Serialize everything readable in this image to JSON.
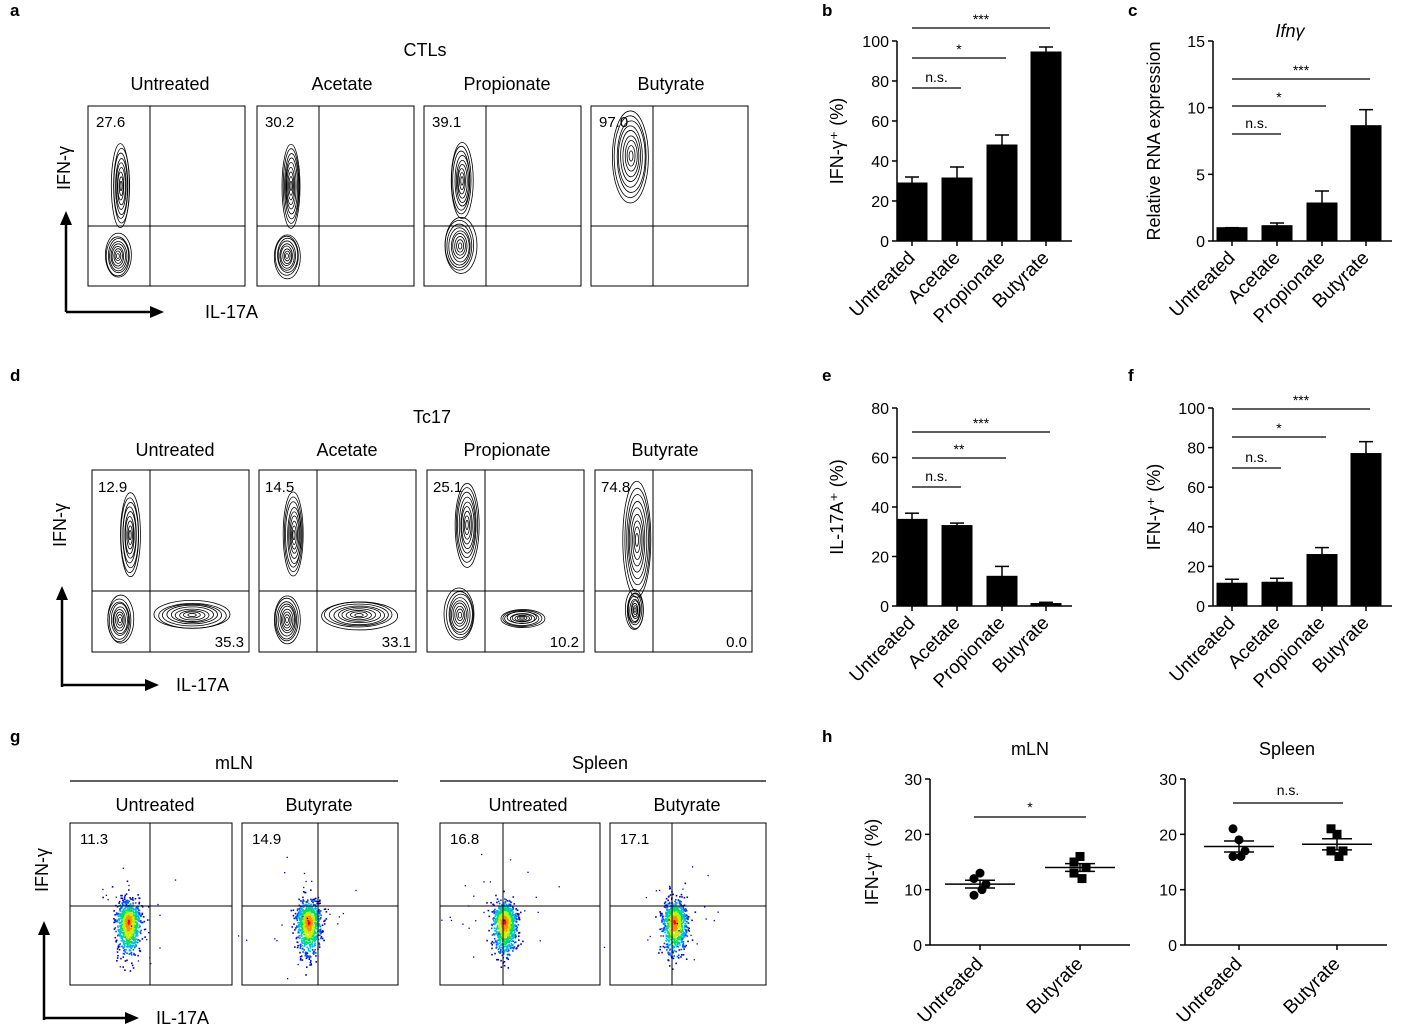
{
  "panel_letters": [
    "a",
    "b",
    "c",
    "d",
    "e",
    "f",
    "g",
    "h"
  ],
  "flow": {
    "x_axis_label": "IL-17A",
    "y_axis_label": "IFN-γ",
    "a": {
      "title": "CTLs",
      "columns": [
        "Untreated",
        "Acetate",
        "Propionate",
        "Butyrate"
      ],
      "upper_left": [
        "27.6",
        "30.2",
        "39.1",
        "97.0"
      ]
    },
    "d": {
      "title": "Tc17",
      "columns": [
        "Untreated",
        "Acetate",
        "Propionate",
        "Butyrate"
      ],
      "upper_left": [
        "12.9",
        "14.5",
        "25.1",
        "74.8"
      ],
      "lower_right": [
        "35.3",
        "33.1",
        "10.2",
        "0.0"
      ]
    },
    "g": {
      "groups": [
        "mLN",
        "Spleen"
      ],
      "columns": [
        "Untreated",
        "Butyrate",
        "Untreated",
        "Butyrate"
      ],
      "upper_left": [
        "11.3",
        "14.9",
        "16.8",
        "17.1"
      ]
    }
  },
  "chart_data": [
    {
      "id": "b",
      "type": "bar",
      "title": "",
      "categories": [
        "Untreated",
        "Acetate",
        "Propionate",
        "Butyrate"
      ],
      "values": [
        29,
        31.5,
        48,
        94.5
      ],
      "errors": [
        3,
        5.5,
        5,
        2.5
      ],
      "ylabel": "IFN-γ⁺ (%)",
      "ylim": [
        0,
        100
      ],
      "yticks": [
        0,
        20,
        40,
        60,
        80,
        100
      ],
      "bar_color": "#000000",
      "significance": [
        {
          "from": "Untreated",
          "to": "Acetate",
          "label": "n.s."
        },
        {
          "from": "Untreated",
          "to": "Propionate",
          "label": "*"
        },
        {
          "from": "Untreated",
          "to": "Butyrate",
          "label": "***"
        }
      ]
    },
    {
      "id": "c",
      "type": "bar",
      "title": "Ifnγ",
      "categories": [
        "Untreated",
        "Acetate",
        "Propionate",
        "Butyrate"
      ],
      "values": [
        1,
        1.15,
        2.85,
        8.65
      ],
      "errors": [
        0,
        0.2,
        0.9,
        1.2
      ],
      "ylabel": "Relative RNA expression",
      "ylim": [
        0,
        15
      ],
      "yticks": [
        0,
        5,
        10,
        15
      ],
      "bar_color": "#000000",
      "significance": [
        {
          "from": "Untreated",
          "to": "Acetate",
          "label": "n.s."
        },
        {
          "from": "Untreated",
          "to": "Propionate",
          "label": "*"
        },
        {
          "from": "Untreated",
          "to": "Butyrate",
          "label": "***"
        }
      ]
    },
    {
      "id": "e",
      "type": "bar",
      "title": "",
      "categories": [
        "Untreated",
        "Acetate",
        "Propionate",
        "Butyrate"
      ],
      "values": [
        35,
        32.5,
        12,
        1
      ],
      "errors": [
        2.5,
        1,
        4,
        0.5
      ],
      "ylabel": "IL-17A⁺ (%)",
      "ylim": [
        0,
        80
      ],
      "yticks": [
        0,
        20,
        40,
        60,
        80
      ],
      "bar_color": "#000000",
      "significance": [
        {
          "from": "Untreated",
          "to": "Acetate",
          "label": "n.s."
        },
        {
          "from": "Untreated",
          "to": "Propionate",
          "label": "**"
        },
        {
          "from": "Untreated",
          "to": "Butyrate",
          "label": "***"
        }
      ]
    },
    {
      "id": "f",
      "type": "bar",
      "title": "",
      "categories": [
        "Untreated",
        "Acetate",
        "Propionate",
        "Butyrate"
      ],
      "values": [
        11.5,
        12,
        26,
        77
      ],
      "errors": [
        2,
        2,
        3.5,
        6
      ],
      "ylabel": "IFN-γ⁺ (%)",
      "ylim": [
        0,
        100
      ],
      "yticks": [
        0,
        20,
        40,
        60,
        80,
        100
      ],
      "bar_color": "#000000",
      "significance": [
        {
          "from": "Untreated",
          "to": "Acetate",
          "label": "n.s."
        },
        {
          "from": "Untreated",
          "to": "Propionate",
          "label": "*"
        },
        {
          "from": "Untreated",
          "to": "Butyrate",
          "label": "***"
        }
      ]
    },
    {
      "id": "h-mln",
      "type": "scatter",
      "title": "mLN",
      "categories": [
        "Untreated",
        "Butyrate"
      ],
      "points": [
        [
          12,
          13,
          11,
          9,
          10
        ],
        [
          15,
          16,
          14,
          13,
          12
        ]
      ],
      "means": [
        11,
        14
      ],
      "sem": [
        0.7,
        0.7
      ],
      "markers": [
        "circle",
        "square"
      ],
      "ylabel": "IFN-γ⁺ (%)",
      "ylim": [
        0,
        30
      ],
      "yticks": [
        0,
        10,
        20,
        30
      ],
      "significance": [
        {
          "from": "Untreated",
          "to": "Butyrate",
          "label": "*"
        }
      ]
    },
    {
      "id": "h-spleen",
      "type": "scatter",
      "title": "Spleen",
      "categories": [
        "Untreated",
        "Butyrate"
      ],
      "points": [
        [
          21,
          19,
          17,
          16,
          16
        ],
        [
          21,
          20,
          17,
          17,
          16
        ]
      ],
      "means": [
        17.8,
        18.2
      ],
      "sem": [
        1,
        1
      ],
      "markers": [
        "circle",
        "square"
      ],
      "ylabel": "",
      "ylim": [
        0,
        30
      ],
      "yticks": [
        0,
        10,
        20,
        30
      ],
      "significance": [
        {
          "from": "Untreated",
          "to": "Butyrate",
          "label": "n.s."
        }
      ]
    }
  ]
}
